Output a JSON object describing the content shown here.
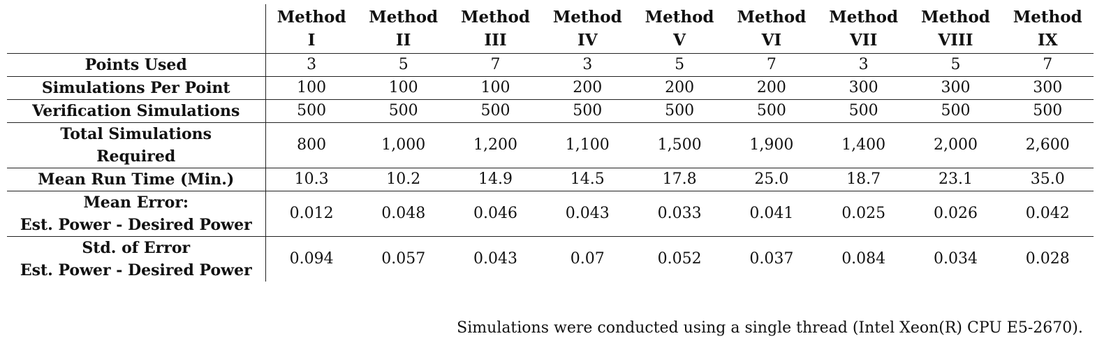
{
  "table": {
    "methods": [
      {
        "line1": "Method",
        "line2": "I"
      },
      {
        "line1": "Method",
        "line2": "II"
      },
      {
        "line1": "Method",
        "line2": "III"
      },
      {
        "line1": "Method",
        "line2": "IV"
      },
      {
        "line1": "Method",
        "line2": "V"
      },
      {
        "line1": "Method",
        "line2": "VI"
      },
      {
        "line1": "Method",
        "line2": "VII"
      },
      {
        "line1": "Method",
        "line2": "VIII"
      },
      {
        "line1": "Method",
        "line2": "IX"
      }
    ],
    "rows": [
      {
        "label1": "Points Used",
        "label2": "",
        "values": [
          "3",
          "5",
          "7",
          "3",
          "5",
          "7",
          "3",
          "5",
          "7"
        ]
      },
      {
        "label1": "Simulations Per Point",
        "label2": "",
        "values": [
          "100",
          "100",
          "100",
          "200",
          "200",
          "200",
          "300",
          "300",
          "300"
        ]
      },
      {
        "label1": "Verification Simulations",
        "label2": "",
        "values": [
          "500",
          "500",
          "500",
          "500",
          "500",
          "500",
          "500",
          "500",
          "500"
        ]
      },
      {
        "label1": "Total Simulations",
        "label2": "Required",
        "values": [
          "800",
          "1,000",
          "1,200",
          "1,100",
          "1,500",
          "1,900",
          "1,400",
          "2,000",
          "2,600"
        ]
      },
      {
        "label1": "Mean Run Time (Min.)",
        "label2": "",
        "values": [
          "10.3",
          "10.2",
          "14.9",
          "14.5",
          "17.8",
          "25.0",
          "18.7",
          "23.1",
          "35.0"
        ]
      },
      {
        "label1": "Mean Error:",
        "label2": "Est. Power - Desired Power",
        "values": [
          "0.012",
          "0.048",
          "0.046",
          "0.043",
          "0.033",
          "0.041",
          "0.025",
          "0.026",
          "0.042"
        ]
      },
      {
        "label1": "Std. of Error",
        "label2": "Est. Power - Desired Power",
        "values": [
          "0.094",
          "0.057",
          "0.043",
          "0.07",
          "0.052",
          "0.037",
          "0.084",
          "0.034",
          "0.028"
        ]
      }
    ]
  },
  "footnote": "Simulations were conducted using a single thread (Intel Xeon(R) CPU E5-2670)."
}
